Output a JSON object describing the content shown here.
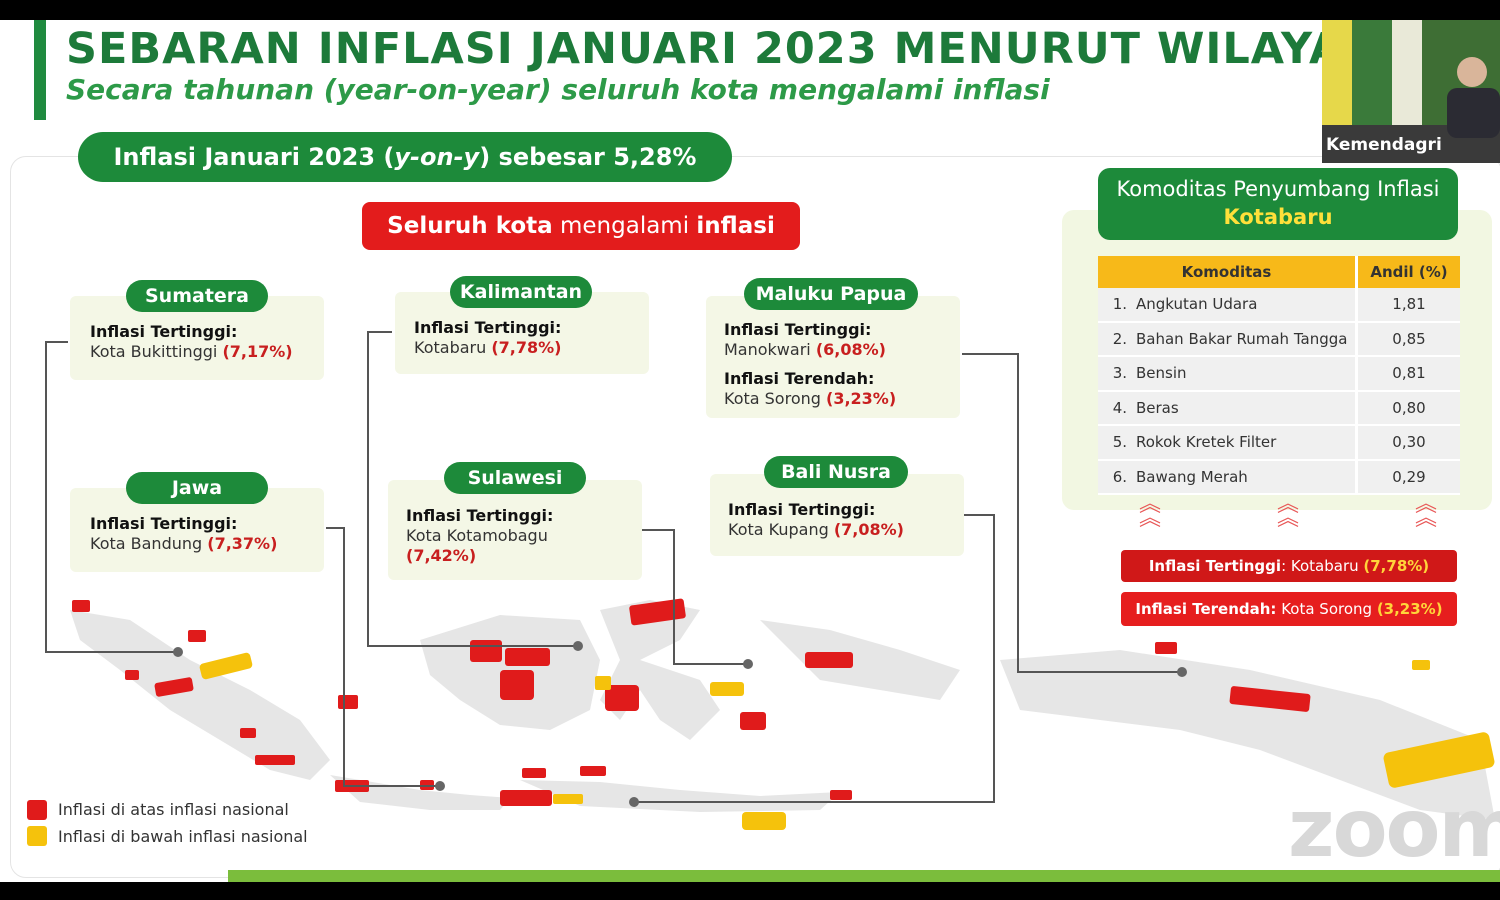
{
  "header": {
    "title": "SEBARAN INFLASI JANUARI 2023 MENURUT WILAYA",
    "subtitle": "Secara tahunan (year-on-year) seluruh kota mengalami inflasi"
  },
  "headline": {
    "pre": "Inflasi Januari 2023 (",
    "italic": "y-on-y",
    "post": ") sebesar 5,28%"
  },
  "banner": {
    "part1": "Seluruh kota",
    "part2": " mengalami ",
    "part3": "inflasi"
  },
  "regions": {
    "sumatera": {
      "name": "Sumatera",
      "label1": "Inflasi Tertinggi:",
      "city1": "Kota Bukittinggi",
      "val1": "(7,17%)"
    },
    "jawa": {
      "name": "Jawa",
      "label1": "Inflasi Tertinggi:",
      "city1": "Kota Bandung",
      "val1": "(7,37%)"
    },
    "kalimantan": {
      "name": "Kalimantan",
      "label1": "Inflasi Tertinggi:",
      "city1": "Kotabaru",
      "val1": "(7,78%)"
    },
    "sulawesi": {
      "name": "Sulawesi",
      "label1": "Inflasi Tertinggi:",
      "city1": "Kota Kotamobagu",
      "val1": "(7,42%)"
    },
    "maluku_papua": {
      "name": "Maluku Papua",
      "label1": "Inflasi Tertinggi:",
      "city1": "Manokwari",
      "val1": "(6,08%)",
      "label2": "Inflasi Terendah:",
      "city2": "Kota Sorong",
      "val2": "(3,23%)"
    },
    "bali_nusra": {
      "name": "Bali Nusra",
      "label1": "Inflasi Tertinggi:",
      "city1": "Kota Kupang",
      "val1": "(7,08%)"
    }
  },
  "komoditas": {
    "title": "Komoditas Penyumbang Inflasi",
    "city": "Kotabaru",
    "col1": "Komoditas",
    "col2": "Andil (%)",
    "rows": [
      {
        "no": "1.",
        "name": "Angkutan Udara",
        "andil": "1,81"
      },
      {
        "no": "2.",
        "name": "Bahan Bakar Rumah Tangga",
        "andil": "0,85"
      },
      {
        "no": "3.",
        "name": "Bensin",
        "andil": "0,81"
      },
      {
        "no": "4.",
        "name": "Beras",
        "andil": "0,80"
      },
      {
        "no": "5.",
        "name": "Rokok Kretek Filter",
        "andil": "0,30"
      },
      {
        "no": "6.",
        "name": "Bawang Merah",
        "andil": "0,29"
      }
    ]
  },
  "summary": {
    "high_label": "Inflasi Tertinggi",
    "high_sep": ": Kotabaru ",
    "high_val": "(7,78%)",
    "low_label": "Inflasi Terendah:",
    "low_city": " Kota Sorong ",
    "low_val": "(3,23%)"
  },
  "legend": {
    "above": "Inflasi di atas inflasi nasional",
    "below": "Inflasi di bawah inflasi nasional",
    "above_color": "#e01b1b",
    "below_color": "#f5c20c"
  },
  "webcam": {
    "name": "Kemendagri"
  },
  "watermark": "zoom"
}
